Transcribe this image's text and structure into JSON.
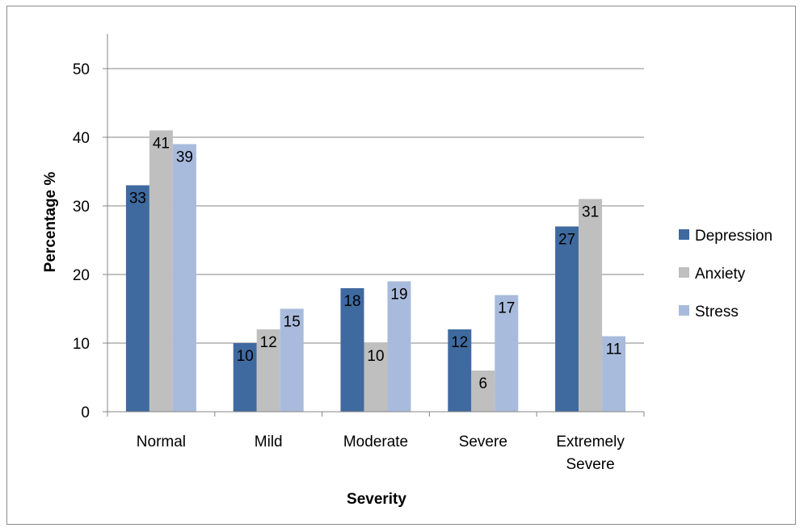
{
  "chart_data": {
    "type": "bar",
    "title": "",
    "xlabel": "Severity",
    "ylabel": "Percentage  %",
    "categories": [
      [
        "Normal"
      ],
      [
        "Mild"
      ],
      [
        "Moderate"
      ],
      [
        "Severe"
      ],
      [
        "Extremely",
        "Severe"
      ]
    ],
    "series": [
      {
        "name": "Depression",
        "color": "#3f6a9f",
        "values": [
          33,
          10,
          18,
          12,
          27
        ]
      },
      {
        "name": "Anxiety",
        "color": "#bfbfbf",
        "values": [
          41,
          12,
          10,
          6,
          31
        ]
      },
      {
        "name": "Stress",
        "color": "#a9bbdc",
        "values": [
          39,
          15,
          19,
          17,
          11
        ]
      }
    ],
    "ylim": [
      0,
      50
    ],
    "yticks": [
      0,
      10,
      20,
      30,
      40,
      50
    ],
    "grid": true,
    "legend_position": "right",
    "data_labels": true
  }
}
